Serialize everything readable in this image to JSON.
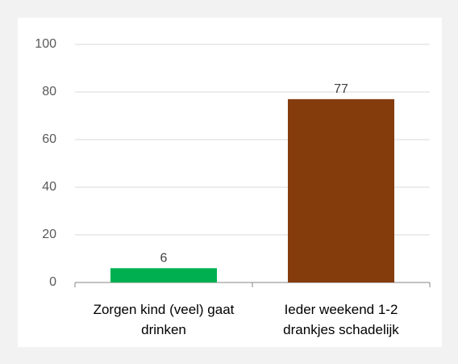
{
  "chart_data": {
    "type": "bar",
    "categories": [
      "Zorgen kind (veel) gaat drinken",
      "Ieder weekend 1-2 drankjes schadelijk"
    ],
    "values": [
      6,
      77
    ],
    "colors": [
      "#00b050",
      "#843c0c"
    ],
    "ylim": [
      0,
      100
    ],
    "yticks": [
      0,
      20,
      40,
      60,
      80,
      100
    ],
    "grid": true
  }
}
